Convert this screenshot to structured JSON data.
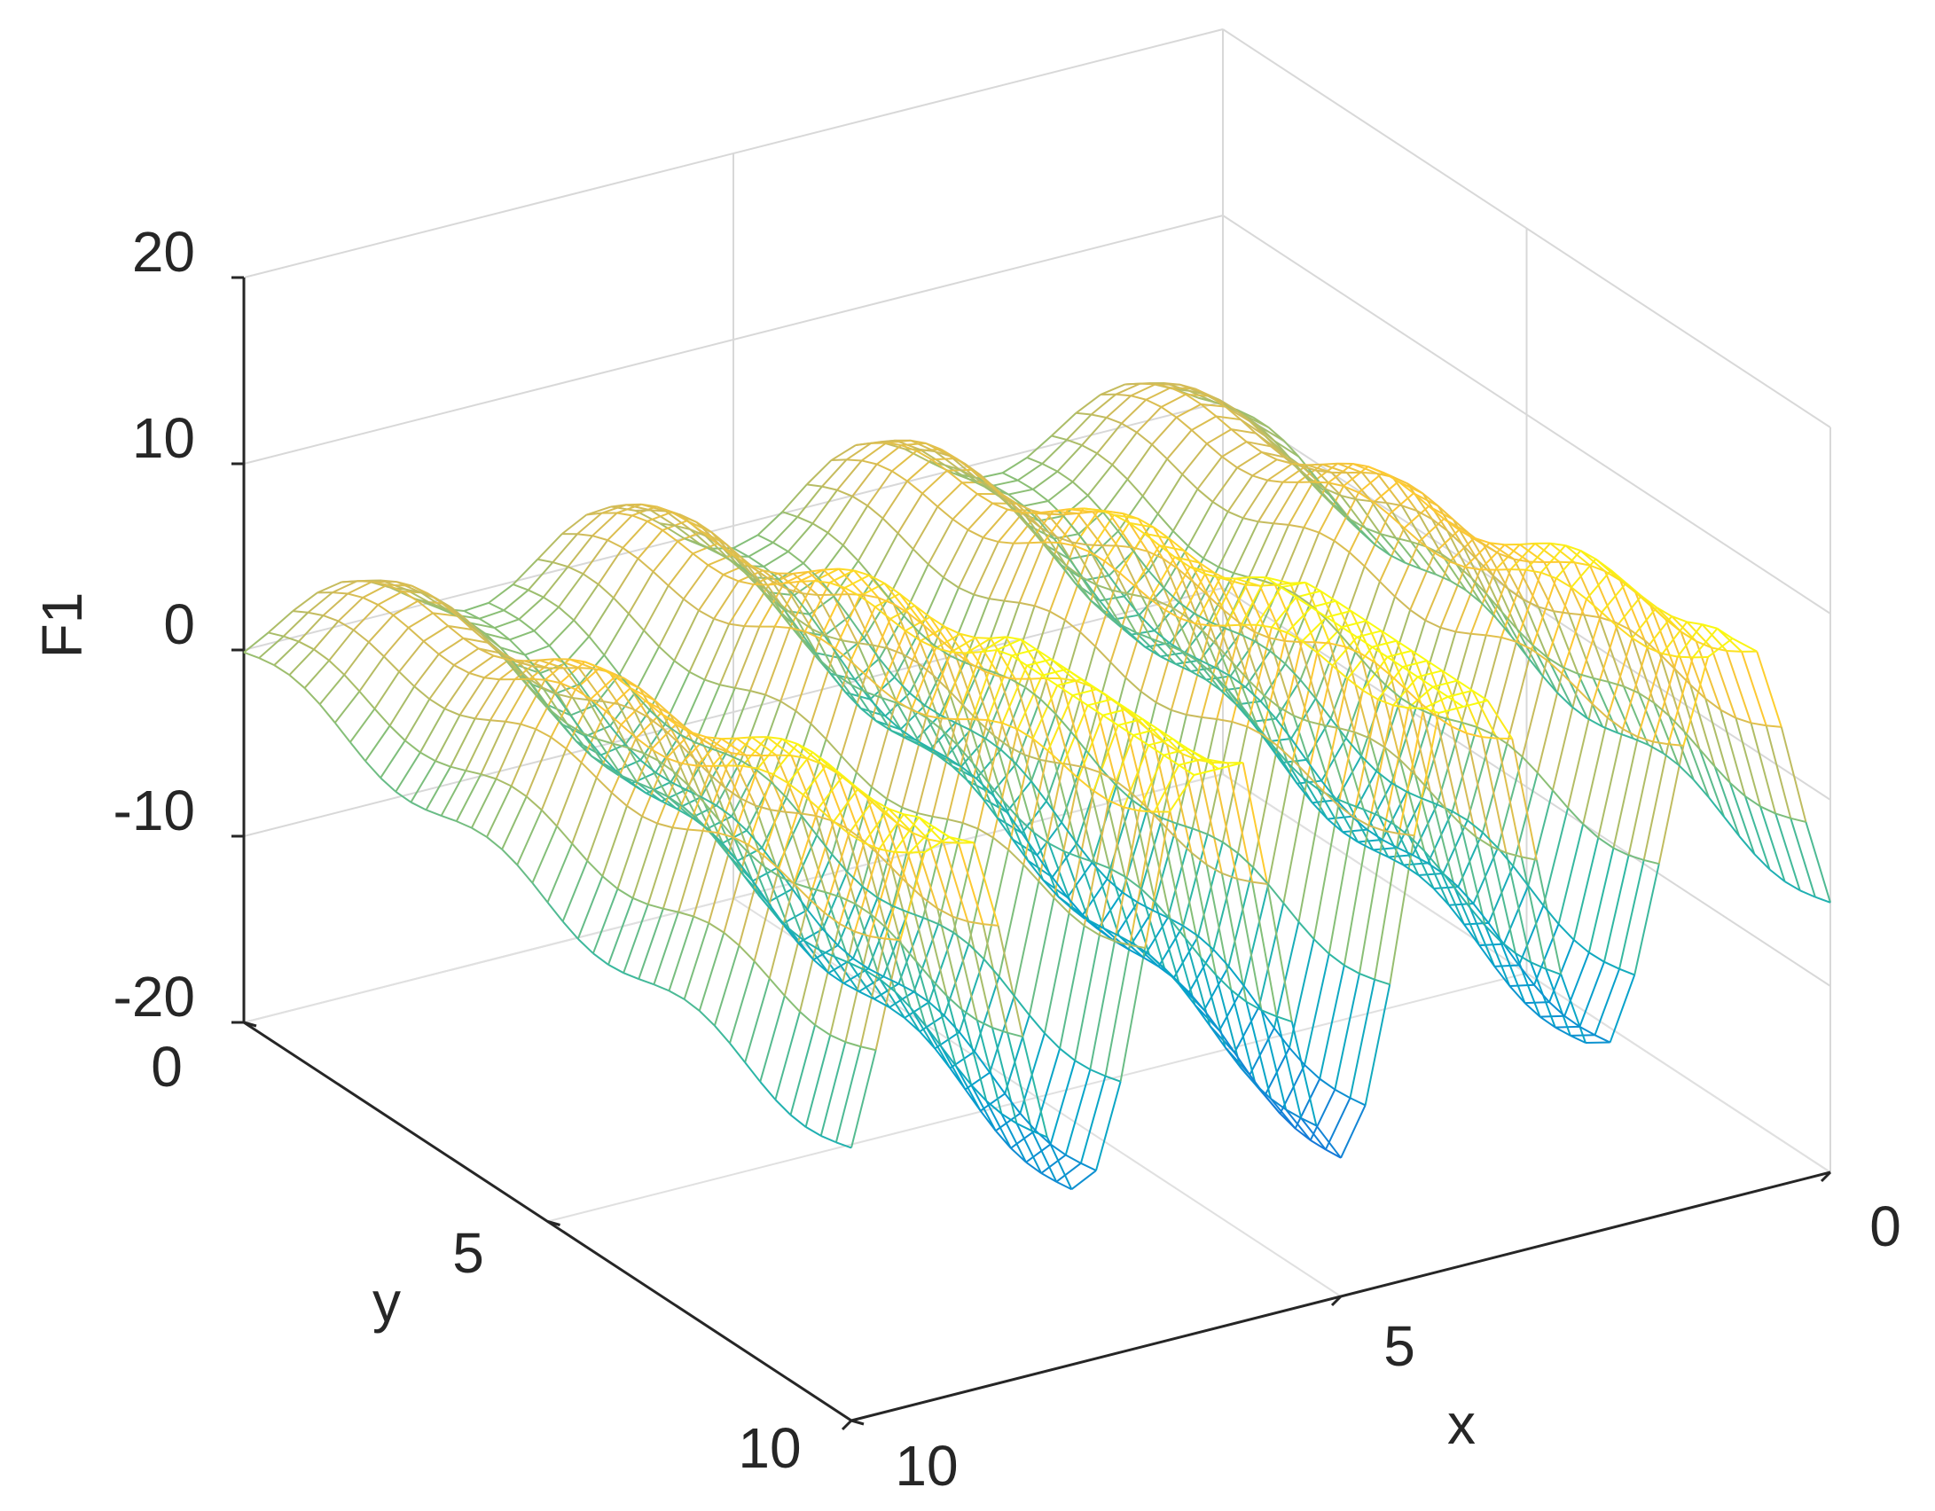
{
  "chart_data": {
    "type": "surface",
    "render_style": "mesh",
    "colormap": "parula",
    "colors": [
      "#352a87",
      "#0f5cdd",
      "#1481d6",
      "#06a4ca",
      "#2eb7a4",
      "#87bf77",
      "#d1bb59",
      "#fec832",
      "#f9fb0e"
    ],
    "xlabel": "x",
    "ylabel": "y",
    "zlabel": "F1",
    "xlim": [
      0,
      10
    ],
    "ylim": [
      0,
      10
    ],
    "zlim": [
      -20,
      20
    ],
    "xticks": [
      0,
      5,
      10
    ],
    "yticks": [
      0,
      5,
      10
    ],
    "zticks": [
      -20,
      -10,
      0,
      10,
      20
    ],
    "xtick_labels": [
      "0",
      "5",
      "10"
    ],
    "ytick_labels": [
      "0",
      "5",
      "10"
    ],
    "ztick_labels": [
      "-20",
      "-10",
      "0",
      "10",
      "20"
    ],
    "grid": true,
    "box": false,
    "x_values": [
      0,
      0.25,
      0.5,
      0.75,
      1,
      1.25,
      1.5,
      1.75,
      2,
      2.25,
      2.5,
      2.75,
      3,
      3.25,
      3.5,
      3.75,
      4,
      4.25,
      4.5,
      4.75,
      5,
      5.25,
      5.5,
      5.75,
      6,
      6.25,
      6.5,
      6.75,
      7,
      7.25,
      7.5,
      7.75,
      8,
      8.25,
      8.5,
      8.75,
      9,
      9.25,
      9.5,
      9.75,
      10
    ],
    "y_values": [
      0,
      0.25,
      0.5,
      0.75,
      1,
      1.25,
      1.5,
      1.75,
      2,
      2.25,
      2.5,
      2.75,
      3,
      3.25,
      3.5,
      3.75,
      4,
      4.25,
      4.5,
      4.75,
      5,
      5.25,
      5.5,
      5.75,
      6,
      6.25,
      6.5,
      6.75,
      7,
      7.25,
      7.5,
      7.75,
      8,
      8.25,
      8.5,
      8.75,
      9,
      9.25,
      9.5,
      9.75,
      10
    ],
    "surface_shape": "damped ripple: rows of ridges along x with deep troughs, amplitude growing with y",
    "peak_values": {
      "max": 10,
      "min": -19
    }
  }
}
